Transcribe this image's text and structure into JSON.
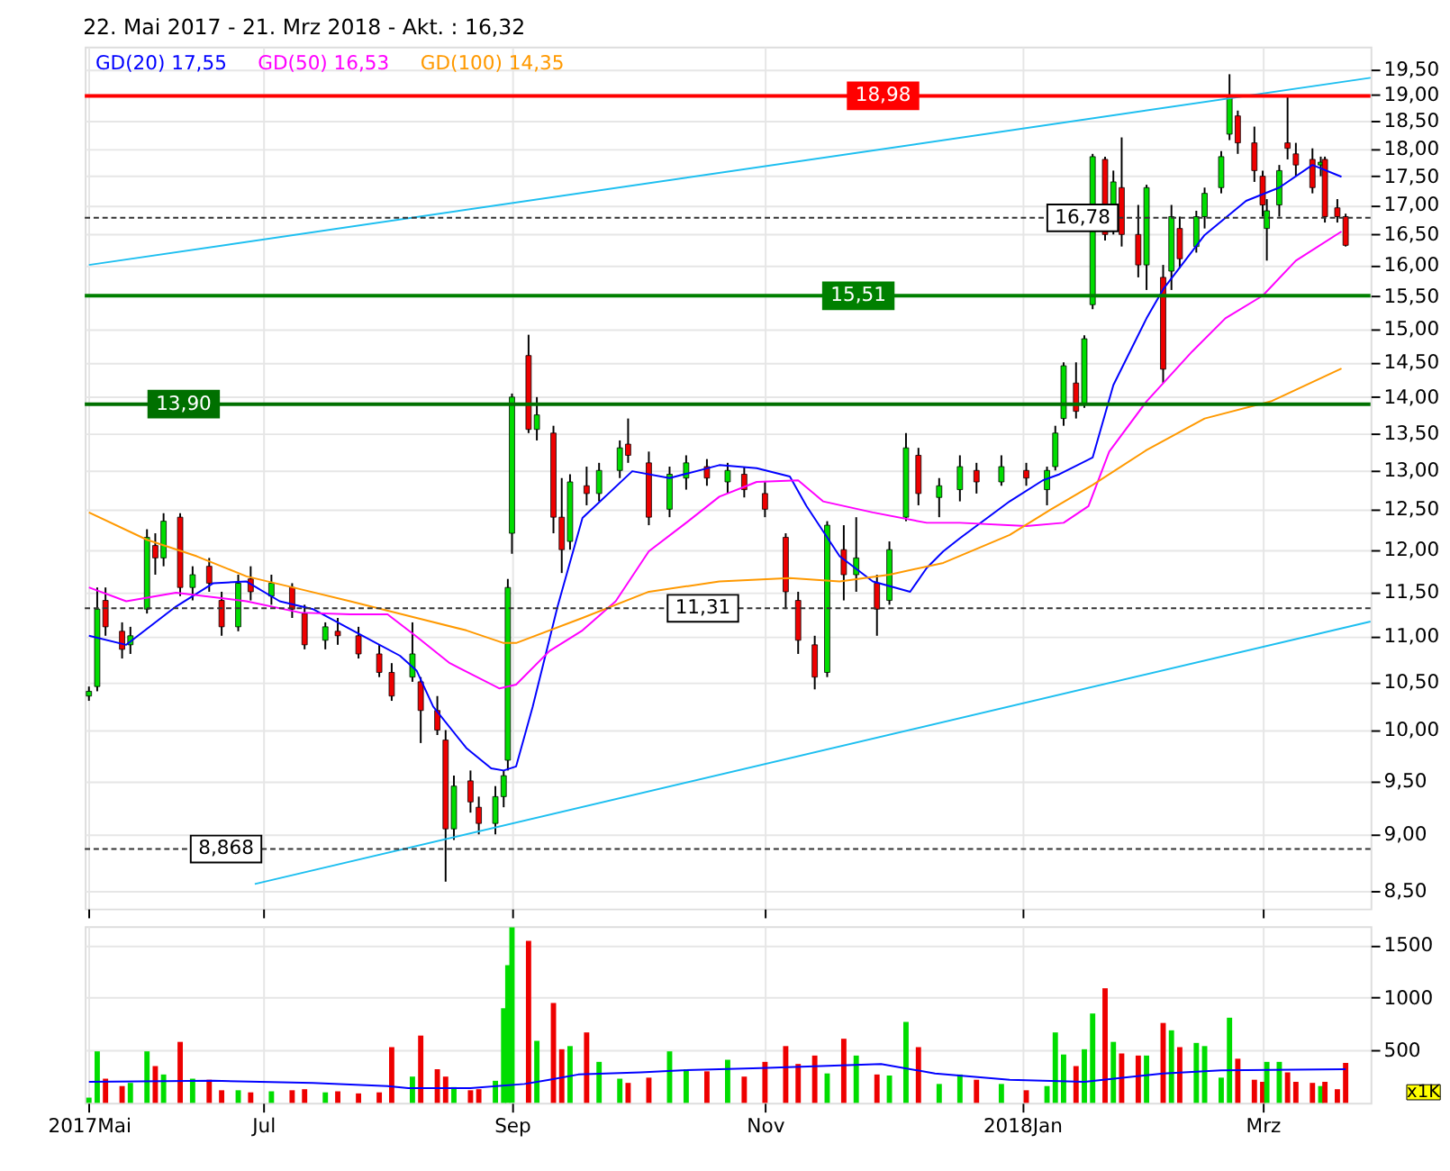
{
  "chart_data": [
    {
      "type": "candlestick",
      "title": "22. Mai 2017 - 21. Mrz 2018 - Akt. : 16,32",
      "log": true,
      "grid": true,
      "legend": "top left",
      "tick_labels": "y",
      "x": [
        "2017-05-22",
        "2017-05-24",
        "2017-05-26",
        "2017-05-30",
        "2017-06-01",
        "2017-06-05",
        "2017-06-07",
        "2017-06-09",
        "2017-06-13",
        "2017-06-16",
        "2017-06-20",
        "2017-06-23",
        "2017-06-27",
        "2017-06-30",
        "2017-07-05",
        "2017-07-10",
        "2017-07-13",
        "2017-07-18",
        "2017-07-21",
        "2017-07-26",
        "2017-07-31",
        "2017-08-03",
        "2017-08-08",
        "2017-08-10",
        "2017-08-14",
        "2017-08-16",
        "2017-08-18",
        "2017-08-22",
        "2017-08-24",
        "2017-08-28",
        "2017-08-30",
        "2017-08-31",
        "2017-09-01",
        "2017-09-05",
        "2017-09-07",
        "2017-09-11",
        "2017-09-13",
        "2017-09-15",
        "2017-09-19",
        "2017-09-22",
        "2017-09-27",
        "2017-09-29",
        "2017-10-04",
        "2017-10-09",
        "2017-10-13",
        "2017-10-18",
        "2017-10-23",
        "2017-10-27",
        "2017-11-01",
        "2017-11-06",
        "2017-11-09",
        "2017-11-13",
        "2017-11-16",
        "2017-11-20",
        "2017-11-23",
        "2017-11-28",
        "2017-12-01",
        "2017-12-05",
        "2017-12-08",
        "2017-12-13",
        "2017-12-18",
        "2017-12-22",
        "2017-12-28",
        "2018-01-03",
        "2018-01-08",
        "2018-01-10",
        "2018-01-12",
        "2018-01-15",
        "2018-01-17",
        "2018-01-19",
        "2018-01-22",
        "2018-01-24",
        "2018-01-26",
        "2018-01-30",
        "2018-02-01",
        "2018-02-05",
        "2018-02-07",
        "2018-02-09",
        "2018-02-13",
        "2018-02-15",
        "2018-02-19",
        "2018-02-21",
        "2018-02-23",
        "2018-02-27",
        "2018-03-01",
        "2018-03-02",
        "2018-03-05",
        "2018-03-07",
        "2018-03-09",
        "2018-03-13",
        "2018-03-15",
        "2018-03-16",
        "2018-03-19",
        "2018-03-21"
      ],
      "ohlc": [
        [
          10.35,
          10.45,
          10.3,
          10.4
        ],
        [
          10.45,
          11.55,
          10.4,
          11.3
        ],
        [
          11.4,
          11.55,
          11.0,
          11.1
        ],
        [
          11.05,
          11.15,
          10.75,
          10.85
        ],
        [
          10.9,
          11.1,
          10.8,
          11.0
        ],
        [
          11.3,
          12.25,
          11.25,
          12.15
        ],
        [
          12.05,
          12.2,
          11.7,
          11.9
        ],
        [
          11.9,
          12.45,
          11.8,
          12.35
        ],
        [
          12.4,
          12.45,
          11.45,
          11.55
        ],
        [
          11.55,
          11.8,
          11.4,
          11.7
        ],
        [
          11.8,
          11.9,
          11.5,
          11.6
        ],
        [
          11.4,
          11.5,
          11.0,
          11.1
        ],
        [
          11.1,
          11.7,
          11.05,
          11.6
        ],
        [
          11.65,
          11.8,
          11.4,
          11.5
        ],
        [
          11.45,
          11.7,
          11.35,
          11.6
        ],
        [
          11.55,
          11.6,
          11.2,
          11.3
        ],
        [
          11.25,
          11.35,
          10.85,
          10.9
        ],
        [
          10.95,
          11.15,
          10.85,
          11.1
        ],
        [
          11.05,
          11.2,
          10.9,
          11.0
        ],
        [
          11.0,
          11.1,
          10.75,
          10.8
        ],
        [
          10.8,
          10.9,
          10.55,
          10.6
        ],
        [
          10.6,
          10.7,
          10.3,
          10.35
        ],
        [
          10.55,
          11.15,
          10.5,
          10.8
        ],
        [
          10.5,
          10.55,
          9.87,
          10.2
        ],
        [
          10.2,
          10.35,
          9.95,
          10.0
        ],
        [
          9.9,
          10.0,
          8.58,
          9.05
        ],
        [
          9.05,
          9.55,
          8.95,
          9.45
        ],
        [
          9.5,
          9.6,
          9.2,
          9.3
        ],
        [
          9.25,
          9.35,
          9.0,
          9.1
        ],
        [
          9.1,
          9.45,
          9.0,
          9.35
        ],
        [
          9.35,
          9.6,
          9.25,
          9.55
        ],
        [
          9.7,
          11.65,
          9.6,
          11.55
        ],
        [
          12.2,
          14.05,
          11.95,
          14.0
        ],
        [
          14.6,
          14.91,
          13.5,
          13.55
        ],
        [
          13.55,
          14.0,
          13.4,
          13.75
        ],
        [
          13.5,
          13.6,
          12.2,
          12.4
        ],
        [
          12.4,
          12.9,
          11.72,
          12.0
        ],
        [
          12.1,
          12.95,
          12.0,
          12.85
        ],
        [
          12.8,
          13.05,
          12.55,
          12.7
        ],
        [
          12.7,
          13.1,
          12.6,
          13.0
        ],
        [
          13.0,
          13.4,
          12.9,
          13.3
        ],
        [
          13.35,
          13.7,
          13.1,
          13.2
        ],
        [
          13.1,
          13.25,
          12.3,
          12.4
        ],
        [
          12.5,
          13.05,
          12.4,
          12.95
        ],
        [
          12.9,
          13.2,
          12.75,
          13.1
        ],
        [
          13.05,
          13.15,
          12.8,
          12.9
        ],
        [
          12.85,
          13.1,
          12.7,
          13.0
        ],
        [
          12.95,
          13.05,
          12.65,
          12.75
        ],
        [
          12.7,
          12.85,
          12.4,
          12.5
        ],
        [
          12.15,
          12.2,
          11.3,
          11.5
        ],
        [
          11.4,
          11.5,
          10.8,
          10.95
        ],
        [
          10.9,
          11.0,
          10.42,
          10.55
        ],
        [
          10.6,
          12.35,
          10.55,
          12.3
        ],
        [
          12.0,
          12.3,
          11.4,
          11.7
        ],
        [
          11.7,
          12.4,
          11.5,
          11.9
        ],
        [
          11.6,
          11.7,
          11.0,
          11.3
        ],
        [
          11.4,
          12.1,
          11.35,
          12.0
        ],
        [
          12.4,
          13.5,
          12.35,
          13.3
        ],
        [
          13.2,
          13.3,
          12.55,
          12.7
        ],
        [
          12.65,
          12.9,
          12.4,
          12.8
        ],
        [
          12.75,
          13.2,
          12.6,
          13.05
        ],
        [
          13.0,
          13.1,
          12.7,
          12.85
        ],
        [
          12.85,
          13.2,
          12.8,
          13.05
        ],
        [
          13.0,
          13.1,
          12.8,
          12.9
        ],
        [
          12.75,
          13.05,
          12.55,
          13.0
        ],
        [
          13.05,
          13.6,
          13.0,
          13.5
        ],
        [
          13.7,
          14.5,
          13.6,
          14.45
        ],
        [
          14.2,
          14.5,
          13.7,
          13.8
        ],
        [
          13.9,
          14.9,
          13.85,
          14.85
        ],
        [
          15.37,
          17.9,
          15.3,
          17.85
        ],
        [
          17.8,
          17.85,
          16.4,
          16.5
        ],
        [
          16.6,
          17.6,
          16.5,
          17.4
        ],
        [
          17.3,
          18.2,
          16.3,
          16.5
        ],
        [
          16.5,
          17.0,
          15.8,
          16.0
        ],
        [
          16.0,
          17.35,
          15.6,
          17.3
        ],
        [
          15.8,
          16.0,
          14.2,
          14.4
        ],
        [
          15.9,
          17.0,
          15.6,
          16.8
        ],
        [
          16.6,
          16.8,
          15.95,
          16.1
        ],
        [
          16.3,
          16.9,
          16.2,
          16.8
        ],
        [
          16.8,
          17.3,
          16.6,
          17.2
        ],
        [
          17.3,
          17.95,
          17.2,
          17.85
        ],
        [
          18.26,
          19.4,
          18.15,
          18.97
        ],
        [
          18.6,
          18.7,
          17.9,
          18.1
        ],
        [
          18.1,
          18.4,
          17.4,
          17.6
        ],
        [
          17.5,
          17.6,
          16.8,
          17.0
        ],
        [
          16.6,
          17.1,
          16.07,
          16.9
        ],
        [
          17.0,
          17.7,
          16.8,
          17.6
        ],
        [
          18.1,
          18.98,
          17.8,
          18.0
        ],
        [
          17.9,
          18.1,
          17.5,
          17.7
        ],
        [
          17.8,
          18.0,
          17.2,
          17.3
        ],
        [
          17.7,
          17.85,
          17.5,
          17.75
        ],
        [
          17.8,
          17.85,
          16.7,
          16.8
        ],
        [
          16.95,
          17.1,
          16.7,
          16.8
        ],
        [
          16.8,
          16.85,
          16.3,
          16.32
        ]
      ],
      "colors": [
        "#00dd00",
        "#00dd00",
        "#ee0000",
        "#ee0000",
        "#00dd00",
        "#00dd00",
        "#ee0000",
        "#00dd00",
        "#ee0000",
        "#00dd00",
        "#ee0000",
        "#ee0000",
        "#00dd00",
        "#ee0000",
        "#00dd00",
        "#ee0000",
        "#ee0000",
        "#00dd00",
        "#ee0000",
        "#ee0000",
        "#ee0000",
        "#ee0000",
        "#00dd00",
        "#ee0000",
        "#ee0000",
        "#ee0000",
        "#00dd00",
        "#ee0000",
        "#ee0000",
        "#00dd00",
        "#00dd00",
        "#00dd00",
        "#00dd00",
        "#ee0000",
        "#00dd00",
        "#ee0000",
        "#ee0000",
        "#00dd00",
        "#ee0000",
        "#00dd00",
        "#00dd00",
        "#ee0000",
        "#ee0000",
        "#00dd00",
        "#00dd00",
        "#ee0000",
        "#00dd00",
        "#ee0000",
        "#ee0000",
        "#ee0000",
        "#ee0000",
        "#ee0000",
        "#00dd00",
        "#ee0000",
        "#00dd00",
        "#ee0000",
        "#00dd00",
        "#00dd00",
        "#ee0000",
        "#00dd00",
        "#00dd00",
        "#ee0000",
        "#00dd00",
        "#ee0000",
        "#00dd00",
        "#00dd00",
        "#00dd00",
        "#ee0000",
        "#00dd00",
        "#00dd00",
        "#ee0000",
        "#00dd00",
        "#ee0000",
        "#ee0000",
        "#00dd00",
        "#ee0000",
        "#00dd00",
        "#ee0000",
        "#00dd00",
        "#00dd00",
        "#00dd00",
        "#00dd00",
        "#ee0000",
        "#ee0000",
        "#ee0000",
        "#00dd00",
        "#00dd00",
        "#ee0000",
        "#ee0000",
        "#ee0000",
        "#00dd00",
        "#ee0000",
        "#ee0000",
        "#ee0000"
      ],
      "series": [
        {
          "type": "line",
          "name": "GD(20) 17,55",
          "color": "#0000ff",
          "x": [
            "2017-05-22",
            "2017-05-31",
            "2017-06-12",
            "2017-06-21",
            "2017-06-29",
            "2017-07-07",
            "2017-07-15",
            "2017-07-27",
            "2017-08-05",
            "2017-08-09",
            "2017-08-13",
            "2017-08-21",
            "2017-08-27",
            "2017-08-30",
            "2017-09-02",
            "2017-09-06",
            "2017-09-12",
            "2017-09-18",
            "2017-09-30",
            "2017-10-09",
            "2017-10-21",
            "2017-10-30",
            "2017-11-07",
            "2017-11-11",
            "2017-11-19",
            "2017-11-27",
            "2017-12-06",
            "2017-12-10",
            "2017-12-14",
            "2017-12-18",
            "2017-12-30",
            "2018-01-07",
            "2018-01-11",
            "2018-01-19",
            "2018-01-24",
            "2018-02-01",
            "2018-02-05",
            "2018-02-15",
            "2018-02-25",
            "2018-03-05",
            "2018-03-13",
            "2018-03-20"
          ],
          "values": [
            11.0,
            10.9,
            11.33,
            11.6,
            11.62,
            11.39,
            11.3,
            11.0,
            10.78,
            10.62,
            10.24,
            9.82,
            9.62,
            9.6,
            9.64,
            10.24,
            11.33,
            12.39,
            12.99,
            12.9,
            13.07,
            13.03,
            12.92,
            12.54,
            11.92,
            11.62,
            11.5,
            11.78,
            11.98,
            12.14,
            12.6,
            12.87,
            12.95,
            13.17,
            14.17,
            15.16,
            15.61,
            16.49,
            17.07,
            17.3,
            17.7,
            17.49
          ]
        },
        {
          "type": "line",
          "name": "GD(50) 16,53",
          "color": "#ff00ff",
          "x": [
            "2017-05-22",
            "2017-05-31",
            "2017-06-12",
            "2017-06-29",
            "2017-07-12",
            "2017-07-24",
            "2017-08-02",
            "2017-08-09",
            "2017-08-17",
            "2017-08-29",
            "2017-09-02",
            "2017-09-10",
            "2017-09-18",
            "2017-09-26",
            "2017-10-04",
            "2017-10-13",
            "2017-10-21",
            "2017-10-30",
            "2017-11-09",
            "2017-11-15",
            "2017-11-27",
            "2017-12-10",
            "2017-12-18",
            "2018-01-03",
            "2018-01-12",
            "2018-01-18",
            "2018-01-23",
            "2018-02-01",
            "2018-02-12",
            "2018-02-20",
            "2018-03-01",
            "2018-03-09",
            "2018-03-20"
          ],
          "values": [
            11.55,
            11.39,
            11.49,
            11.39,
            11.26,
            11.24,
            11.24,
            10.99,
            10.7,
            10.43,
            10.47,
            10.83,
            11.06,
            11.39,
            11.98,
            12.33,
            12.66,
            12.85,
            12.87,
            12.6,
            12.46,
            12.33,
            12.33,
            12.29,
            12.33,
            12.54,
            13.25,
            13.94,
            14.66,
            15.16,
            15.51,
            16.07,
            16.55
          ]
        },
        {
          "type": "line",
          "name": "GD(100) 14,35",
          "color": "#ff9900",
          "x": [
            "2017-05-22",
            "2017-06-05",
            "2017-06-17",
            "2017-06-29",
            "2017-07-12",
            "2017-07-24",
            "2017-08-09",
            "2017-08-21",
            "2017-08-30",
            "2017-09-02",
            "2017-09-18",
            "2017-10-04",
            "2017-10-21",
            "2017-11-07",
            "2017-11-19",
            "2017-12-01",
            "2017-12-14",
            "2017-12-30",
            "2018-01-09",
            "2018-01-19",
            "2018-02-01",
            "2018-02-15",
            "2018-03-03",
            "2018-03-20"
          ],
          "values": [
            12.46,
            12.12,
            11.92,
            11.68,
            11.53,
            11.39,
            11.2,
            11.06,
            10.92,
            10.92,
            11.2,
            11.5,
            11.62,
            11.66,
            11.62,
            11.7,
            11.84,
            12.18,
            12.5,
            12.81,
            13.27,
            13.7,
            13.94,
            14.41
          ]
        },
        {
          "type": "line",
          "color": "#1ebff0",
          "x": [
            "2017-05-22",
            "2018-03-27"
          ],
          "values": [
            16.0,
            19.33
          ]
        },
        {
          "type": "line",
          "color": "#1ebff0",
          "x": [
            "2017-07-01",
            "2018-03-27"
          ],
          "values": [
            8.56,
            11.16
          ]
        }
      ],
      "ref_lines": [
        {
          "axis": "y",
          "value": 18.98,
          "label": "18,98",
          "color": "#ff0000",
          "line_style": "solid"
        },
        {
          "axis": "y",
          "value": 15.51,
          "label": "15,51",
          "color": "#008000",
          "line_style": "solid"
        },
        {
          "axis": "y",
          "value": 13.9,
          "label": "13,90",
          "color": "#007000",
          "line_style": "solid"
        },
        {
          "axis": "y",
          "value": 16.78,
          "label": "16,78",
          "color": "#333333",
          "line_style": "dashed"
        },
        {
          "axis": "y",
          "value": 11.31,
          "label": "11,31",
          "color": "#333333",
          "line_style": "dashed"
        },
        {
          "axis": "y",
          "value": 8.868,
          "label": "8,868",
          "color": "#333333",
          "line_style": "dashed"
        }
      ],
      "xlim": [
        "2017-05-21",
        "2018-03-27"
      ],
      "xticks": [
        {
          "value": "2017-05-22",
          "label": null
        },
        {
          "value": "2017-07-03",
          "label": null
        },
        {
          "value": "2017-09-01",
          "label": null
        },
        {
          "value": "2017-11-01",
          "label": null
        },
        {
          "value": "2018-01-02",
          "label": null
        },
        {
          "value": "2018-03-01",
          "label": null
        }
      ],
      "ylim": [
        8.35,
        19.95
      ],
      "yticks": [
        {
          "value": 8.5,
          "label": "8,50"
        },
        {
          "value": 9.0,
          "label": "9,00"
        },
        {
          "value": 9.5,
          "label": "9,50"
        },
        {
          "value": 10.0,
          "label": "10,00"
        },
        {
          "value": 10.5,
          "label": "10,50"
        },
        {
          "value": 11.0,
          "label": "11,00"
        },
        {
          "value": 11.5,
          "label": "11,50"
        },
        {
          "value": 12.0,
          "label": "12,00"
        },
        {
          "value": 12.5,
          "label": "12,50"
        },
        {
          "value": 13.0,
          "label": "13,00"
        },
        {
          "value": 13.5,
          "label": "13,50"
        },
        {
          "value": 14.0,
          "label": "14,00"
        },
        {
          "value": 14.5,
          "label": "14,50"
        },
        {
          "value": 15.0,
          "label": "15,00"
        },
        {
          "value": 15.5,
          "label": "15,50"
        },
        {
          "value": 16.0,
          "label": "16,00"
        },
        {
          "value": 16.5,
          "label": "16,50"
        },
        {
          "value": 17.0,
          "label": "17,00"
        },
        {
          "value": 17.5,
          "label": "17,50"
        },
        {
          "value": 18.0,
          "label": "18,00"
        },
        {
          "value": 18.5,
          "label": "18,50"
        },
        {
          "value": 19.0,
          "label": "19,00"
        },
        {
          "value": 19.5,
          "label": "19,50"
        }
      ]
    },
    {
      "type": "bar",
      "grid": true,
      "x": [
        "2017-05-22",
        "2017-05-24",
        "2017-05-26",
        "2017-05-30",
        "2017-06-01",
        "2017-06-05",
        "2017-06-07",
        "2017-06-09",
        "2017-06-13",
        "2017-06-16",
        "2017-06-20",
        "2017-06-23",
        "2017-06-27",
        "2017-06-30",
        "2017-07-05",
        "2017-07-10",
        "2017-07-13",
        "2017-07-18",
        "2017-07-21",
        "2017-07-26",
        "2017-07-31",
        "2017-08-03",
        "2017-08-08",
        "2017-08-10",
        "2017-08-14",
        "2017-08-16",
        "2017-08-18",
        "2017-08-22",
        "2017-08-24",
        "2017-08-28",
        "2017-08-30",
        "2017-08-31",
        "2017-09-01",
        "2017-09-05",
        "2017-09-07",
        "2017-09-11",
        "2017-09-13",
        "2017-09-15",
        "2017-09-19",
        "2017-09-22",
        "2017-09-27",
        "2017-09-29",
        "2017-10-04",
        "2017-10-09",
        "2017-10-13",
        "2017-10-18",
        "2017-10-23",
        "2017-10-27",
        "2017-11-01",
        "2017-11-06",
        "2017-11-09",
        "2017-11-13",
        "2017-11-16",
        "2017-11-20",
        "2017-11-23",
        "2017-11-28",
        "2017-12-01",
        "2017-12-05",
        "2017-12-08",
        "2017-12-13",
        "2017-12-18",
        "2017-12-22",
        "2017-12-28",
        "2018-01-03",
        "2018-01-08",
        "2018-01-10",
        "2018-01-12",
        "2018-01-15",
        "2018-01-17",
        "2018-01-19",
        "2018-01-22",
        "2018-01-24",
        "2018-01-26",
        "2018-01-30",
        "2018-02-01",
        "2018-02-05",
        "2018-02-07",
        "2018-02-09",
        "2018-02-13",
        "2018-02-15",
        "2018-02-19",
        "2018-02-21",
        "2018-02-23",
        "2018-02-27",
        "2018-03-01",
        "2018-03-02",
        "2018-03-05",
        "2018-03-07",
        "2018-03-09",
        "2018-03-13",
        "2018-03-15",
        "2018-03-16",
        "2018-03-19",
        "2018-03-21"
      ],
      "values": [
        50,
        490,
        230,
        160,
        190,
        490,
        350,
        270,
        580,
        230,
        220,
        120,
        120,
        100,
        110,
        120,
        130,
        100,
        110,
        90,
        100,
        530,
        250,
        640,
        320,
        250,
        150,
        120,
        130,
        210,
        900,
        1310,
        1670,
        1540,
        590,
        950,
        510,
        540,
        670,
        390,
        230,
        190,
        240,
        490,
        320,
        300,
        410,
        250,
        390,
        540,
        370,
        450,
        280,
        610,
        450,
        270,
        260,
        770,
        530,
        180,
        270,
        220,
        180,
        120,
        160,
        670,
        460,
        350,
        510,
        850,
        1090,
        580,
        470,
        450,
        450,
        760,
        690,
        530,
        570,
        540,
        240,
        810,
        420,
        220,
        200,
        390,
        390,
        290,
        200,
        190,
        160,
        200,
        130,
        380
      ],
      "colors": [
        "#00dd00",
        "#00dd00",
        "#ee0000",
        "#ee0000",
        "#00dd00",
        "#00dd00",
        "#ee0000",
        "#00dd00",
        "#ee0000",
        "#00dd00",
        "#ee0000",
        "#ee0000",
        "#00dd00",
        "#ee0000",
        "#00dd00",
        "#ee0000",
        "#ee0000",
        "#00dd00",
        "#ee0000",
        "#ee0000",
        "#ee0000",
        "#ee0000",
        "#00dd00",
        "#ee0000",
        "#ee0000",
        "#ee0000",
        "#00dd00",
        "#ee0000",
        "#ee0000",
        "#00dd00",
        "#00dd00",
        "#00dd00",
        "#00dd00",
        "#ee0000",
        "#00dd00",
        "#ee0000",
        "#ee0000",
        "#00dd00",
        "#ee0000",
        "#00dd00",
        "#00dd00",
        "#ee0000",
        "#ee0000",
        "#00dd00",
        "#00dd00",
        "#ee0000",
        "#00dd00",
        "#ee0000",
        "#ee0000",
        "#ee0000",
        "#ee0000",
        "#ee0000",
        "#00dd00",
        "#ee0000",
        "#00dd00",
        "#ee0000",
        "#00dd00",
        "#00dd00",
        "#ee0000",
        "#00dd00",
        "#00dd00",
        "#ee0000",
        "#00dd00",
        "#ee0000",
        "#00dd00",
        "#00dd00",
        "#00dd00",
        "#ee0000",
        "#00dd00",
        "#00dd00",
        "#ee0000",
        "#00dd00",
        "#ee0000",
        "#ee0000",
        "#00dd00",
        "#ee0000",
        "#00dd00",
        "#ee0000",
        "#00dd00",
        "#00dd00",
        "#00dd00",
        "#00dd00",
        "#ee0000",
        "#ee0000",
        "#ee0000",
        "#00dd00",
        "#00dd00",
        "#ee0000",
        "#ee0000",
        "#ee0000",
        "#00dd00",
        "#ee0000",
        "#ee0000",
        "#ee0000"
      ],
      "series": [
        {
          "type": "line",
          "color": "#0000ff",
          "x": [
            "2017-05-22",
            "2017-06-21",
            "2017-07-15",
            "2017-08-02",
            "2017-08-07",
            "2017-08-22",
            "2017-09-04",
            "2017-09-10",
            "2017-09-17",
            "2017-10-02",
            "2017-10-12",
            "2017-10-31",
            "2017-11-29",
            "2017-12-12",
            "2017-12-30",
            "2018-01-17",
            "2018-02-05",
            "2018-02-19",
            "2018-03-21"
          ],
          "values": [
            200,
            210,
            190,
            160,
            140,
            140,
            180,
            220,
            270,
            290,
            310,
            330,
            370,
            280,
            220,
            200,
            280,
            310,
            320
          ]
        }
      ],
      "annotations": [
        "x1K"
      ],
      "xlim": [
        "2017-05-21",
        "2018-03-27"
      ],
      "xticks": [
        {
          "value": "2017-05-22",
          "label": "2017Mai"
        },
        {
          "value": "2017-07-03",
          "label": "Jul"
        },
        {
          "value": "2017-09-01",
          "label": "Sep"
        },
        {
          "value": "2017-11-01",
          "label": "Nov"
        },
        {
          "value": "2018-01-02",
          "label": "2018Jan"
        },
        {
          "value": "2018-03-01",
          "label": "Mrz"
        }
      ],
      "ylim": [
        0,
        1680
      ],
      "yticks": [
        500,
        1000,
        1500
      ]
    }
  ]
}
